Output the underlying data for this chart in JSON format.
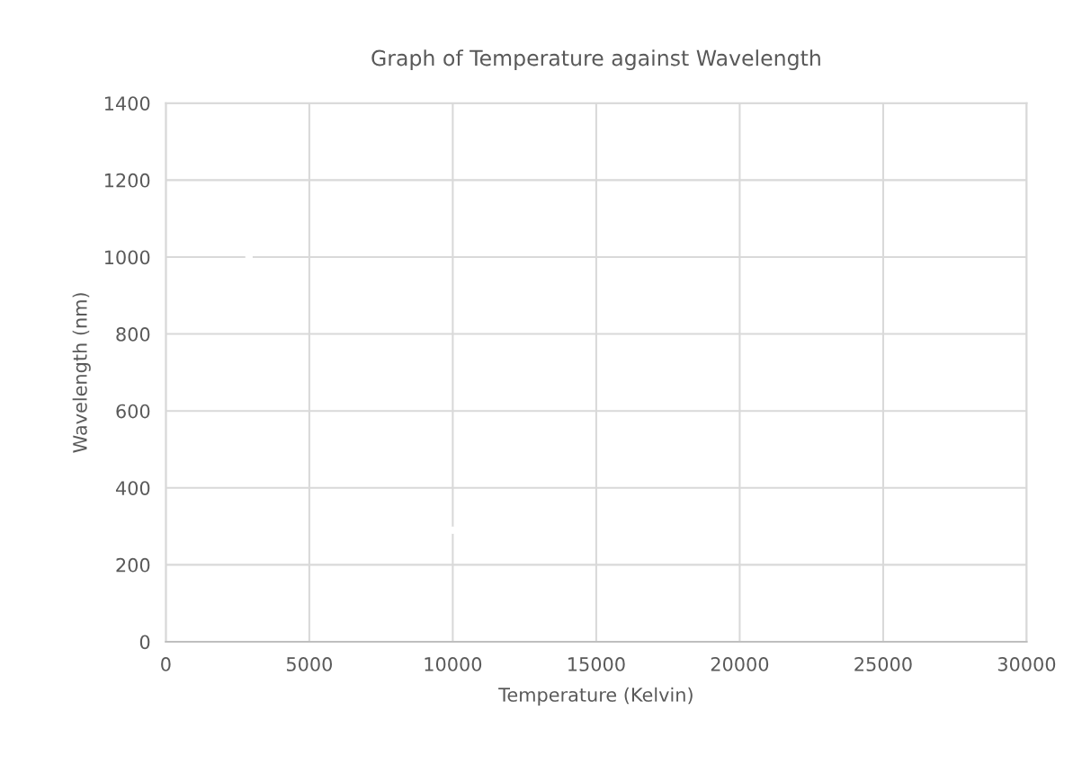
{
  "chart_data": {
    "type": "scatter",
    "title": "Graph of Temperature against Wavelength",
    "xlabel": "Temperature (Kelvin)",
    "ylabel": "Wavelength (nm)",
    "x": [
      2898,
      10000
    ],
    "values": [
      1000,
      290
    ],
    "color": "#ffffff",
    "marker": "circle",
    "xlim": [
      0,
      30000
    ],
    "xticks": [
      0,
      5000,
      10000,
      15000,
      20000,
      25000,
      30000
    ],
    "ylim": [
      0,
      1400
    ],
    "yticks": [
      0,
      200,
      400,
      600,
      800,
      1000,
      1200,
      1400
    ],
    "grid": true,
    "legend": false
  }
}
